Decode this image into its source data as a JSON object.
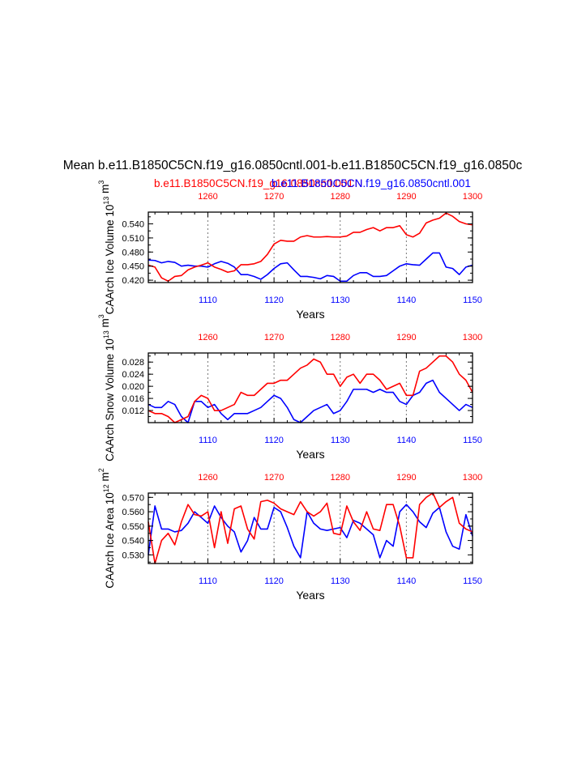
{
  "header": {
    "title": "Mean b.e11.B1850C5CN.f19_g16.0850cntl.001-b.e11.B1850C5CN.f19_g16.0850c",
    "subtitle_red": "b.e11.B1850C5CN.f19_g16.0850cntl.001",
    "subtitle_overlap": "b.e11.B1850C5CN",
    "subtitle_blue": "b.e11.B1850C5CN.f19_g16.0850cntl.001"
  },
  "colors": {
    "red": "#ff0000",
    "blue": "#0000ff",
    "axis": "#000000",
    "grid": "#777777"
  },
  "chart_data": [
    {
      "type": "line",
      "ylabel": "CAArch Ice Volume 10^13 m^3",
      "xlabel": "Years",
      "x_bottom": {
        "range": [
          1101,
          1150
        ],
        "ticks": [
          "1110",
          "1120",
          "1130",
          "1140",
          "1150"
        ]
      },
      "x_top": {
        "range": [
          1251,
          1300
        ],
        "ticks": [
          "1260",
          "1270",
          "1280",
          "1290",
          "1300"
        ]
      },
      "ylim": [
        0.415,
        0.565
      ],
      "yticks": [
        "0.420",
        "0.450",
        "0.480",
        "0.510",
        "0.540"
      ],
      "series": [
        {
          "name": "b.e11.B1850C5CN.f19_g16.0850cntl.001 (top axis)",
          "color": "red",
          "axis": "top",
          "values": [
            0.452,
            0.448,
            0.425,
            0.418,
            0.428,
            0.43,
            0.442,
            0.448,
            0.452,
            0.457,
            0.448,
            0.443,
            0.437,
            0.44,
            0.453,
            0.453,
            0.455,
            0.46,
            0.475,
            0.497,
            0.505,
            0.503,
            0.503,
            0.512,
            0.515,
            0.512,
            0.512,
            0.513,
            0.512,
            0.512,
            0.514,
            0.522,
            0.522,
            0.528,
            0.532,
            0.525,
            0.532,
            0.532,
            0.536,
            0.517,
            0.512,
            0.52,
            0.542,
            0.548,
            0.552,
            0.563,
            0.556,
            0.545,
            0.54,
            0.538
          ]
        },
        {
          "name": "b.e11.B1850C5CN.f19_g16.0850cntl.001 (bottom axis)",
          "color": "blue",
          "axis": "bottom",
          "values": [
            0.463,
            0.462,
            0.457,
            0.46,
            0.458,
            0.45,
            0.452,
            0.45,
            0.45,
            0.448,
            0.455,
            0.46,
            0.456,
            0.448,
            0.432,
            0.432,
            0.428,
            0.422,
            0.432,
            0.445,
            0.455,
            0.457,
            0.442,
            0.428,
            0.428,
            0.426,
            0.423,
            0.43,
            0.428,
            0.418,
            0.418,
            0.43,
            0.436,
            0.436,
            0.428,
            0.428,
            0.43,
            0.44,
            0.45,
            0.455,
            0.453,
            0.452,
            0.465,
            0.478,
            0.478,
            0.448,
            0.445,
            0.432,
            0.448,
            0.452
          ]
        }
      ]
    },
    {
      "type": "line",
      "ylabel": "CAArch Snow Volume 10^13 m^3",
      "xlabel": "Years",
      "x_bottom": {
        "range": [
          1101,
          1150
        ],
        "ticks": [
          "1110",
          "1120",
          "1130",
          "1140",
          "1150"
        ]
      },
      "x_top": {
        "range": [
          1251,
          1300
        ],
        "ticks": [
          "1260",
          "1270",
          "1280",
          "1290",
          "1300"
        ]
      },
      "ylim": [
        0.008,
        0.031
      ],
      "yticks": [
        "0.012",
        "0.016",
        "0.020",
        "0.024",
        "0.028"
      ],
      "series": [
        {
          "name": "b.e11.B1850C5CN.f19_g16.0850cntl.001 (top axis)",
          "color": "red",
          "axis": "top",
          "values": [
            0.012,
            0.011,
            0.011,
            0.01,
            0.008,
            0.009,
            0.01,
            0.015,
            0.017,
            0.016,
            0.012,
            0.012,
            0.013,
            0.014,
            0.018,
            0.017,
            0.017,
            0.019,
            0.021,
            0.021,
            0.022,
            0.022,
            0.024,
            0.026,
            0.027,
            0.029,
            0.028,
            0.024,
            0.024,
            0.02,
            0.023,
            0.024,
            0.021,
            0.024,
            0.024,
            0.022,
            0.019,
            0.02,
            0.021,
            0.017,
            0.017,
            0.025,
            0.026,
            0.028,
            0.03,
            0.03,
            0.028,
            0.024,
            0.022,
            0.018
          ]
        },
        {
          "name": "b.e11.B1850C5CN.f19_g16.0850cntl.001 (bottom axis)",
          "color": "blue",
          "axis": "bottom",
          "values": [
            0.014,
            0.013,
            0.013,
            0.015,
            0.014,
            0.01,
            0.008,
            0.015,
            0.015,
            0.013,
            0.014,
            0.011,
            0.009,
            0.011,
            0.011,
            0.011,
            0.012,
            0.013,
            0.015,
            0.017,
            0.016,
            0.013,
            0.009,
            0.008,
            0.01,
            0.012,
            0.013,
            0.014,
            0.011,
            0.012,
            0.015,
            0.019,
            0.019,
            0.019,
            0.018,
            0.019,
            0.018,
            0.018,
            0.015,
            0.014,
            0.017,
            0.018,
            0.021,
            0.022,
            0.018,
            0.016,
            0.014,
            0.012,
            0.014,
            0.013
          ]
        }
      ]
    },
    {
      "type": "line",
      "ylabel": "CAArch Ice Area 10^12 m^2",
      "xlabel": "Years",
      "x_bottom": {
        "range": [
          1101,
          1150
        ],
        "ticks": [
          "1110",
          "1120",
          "1130",
          "1140",
          "1150"
        ]
      },
      "x_top": {
        "range": [
          1251,
          1300
        ],
        "ticks": [
          "1260",
          "1270",
          "1280",
          "1290",
          "1300"
        ]
      },
      "ylim": [
        0.524,
        0.573
      ],
      "yticks": [
        "0.530",
        "0.540",
        "0.550",
        "0.560",
        "0.570"
      ],
      "series": [
        {
          "name": "b.e11.B1850C5CN.f19_g16.0850cntl.001 (top axis)",
          "color": "red",
          "axis": "top",
          "values": [
            0.553,
            0.524,
            0.54,
            0.545,
            0.537,
            0.553,
            0.565,
            0.558,
            0.557,
            0.56,
            0.535,
            0.56,
            0.538,
            0.562,
            0.564,
            0.548,
            0.541,
            0.567,
            0.568,
            0.566,
            0.562,
            0.56,
            0.558,
            0.567,
            0.56,
            0.557,
            0.56,
            0.566,
            0.545,
            0.544,
            0.564,
            0.553,
            0.547,
            0.56,
            0.548,
            0.547,
            0.565,
            0.565,
            0.55,
            0.528,
            0.528,
            0.565,
            0.57,
            0.573,
            0.563,
            0.567,
            0.57,
            0.552,
            0.548,
            0.546
          ]
        },
        {
          "name": "b.e11.B1850C5CN.f19_g16.0850cntl.001 (bottom axis)",
          "color": "blue",
          "axis": "bottom",
          "values": [
            0.53,
            0.564,
            0.548,
            0.548,
            0.546,
            0.547,
            0.552,
            0.56,
            0.556,
            0.552,
            0.564,
            0.556,
            0.55,
            0.546,
            0.532,
            0.54,
            0.556,
            0.548,
            0.548,
            0.563,
            0.56,
            0.549,
            0.536,
            0.528,
            0.56,
            0.552,
            0.548,
            0.547,
            0.548,
            0.549,
            0.542,
            0.554,
            0.552,
            0.548,
            0.544,
            0.528,
            0.54,
            0.536,
            0.56,
            0.565,
            0.56,
            0.553,
            0.549,
            0.559,
            0.563,
            0.546,
            0.536,
            0.534,
            0.558,
            0.543
          ]
        }
      ]
    }
  ]
}
